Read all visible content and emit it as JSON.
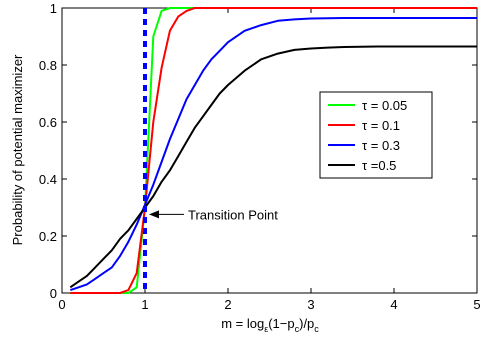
{
  "chart_data": {
    "type": "line",
    "xlabel": "m = log",
    "xlabel_sub1": "ε",
    "xlabel_mid": "(1−p",
    "xlabel_sub2": "c",
    "xlabel_mid2": ")/p",
    "xlabel_sub3": "c",
    "ylabel": "Probability of potential maximizer",
    "xlim": [
      0,
      5
    ],
    "ylim": [
      0,
      1
    ],
    "xticks": [
      0,
      1,
      2,
      3,
      4,
      5
    ],
    "xtick_labels": [
      "0",
      "1",
      "2",
      "3",
      "4",
      "5"
    ],
    "yticks": [
      0,
      0.2,
      0.4,
      0.6,
      0.8,
      1
    ],
    "ytick_labels": [
      "0",
      "0.2",
      "0.4",
      "0.6",
      "0.8",
      "1"
    ],
    "grid": false,
    "legend_position": "right",
    "vertical_line": {
      "x": 1,
      "color": "#0000ff",
      "style": "dashed"
    },
    "annotation": {
      "text": "Transition Point",
      "x": 1,
      "y": 0.29
    },
    "x": [
      0.1,
      0.2,
      0.3,
      0.4,
      0.5,
      0.6,
      0.7,
      0.8,
      0.9,
      1.0,
      1.1,
      1.2,
      1.3,
      1.4,
      1.5,
      1.6,
      1.7,
      1.8,
      1.9,
      2.0,
      2.2,
      2.4,
      2.6,
      2.8,
      3.0,
      3.2,
      3.4,
      3.6,
      3.8,
      4.0,
      4.2,
      4.4,
      4.6,
      4.8,
      5.0
    ],
    "series": [
      {
        "name": "τ = 0.05",
        "color": "#00ff00",
        "values": [
          0.0,
          0.0,
          0.0,
          0.0,
          0.0,
          0.0,
          0.0,
          0.0,
          0.02,
          0.3,
          0.9,
          0.99,
          1.0,
          1.0,
          1.0,
          1.0,
          1.0,
          1.0,
          1.0,
          1.0,
          1.0,
          1.0,
          1.0,
          1.0,
          1.0,
          1.0,
          1.0,
          1.0,
          1.0,
          1.0,
          1.0,
          1.0,
          1.0,
          1.0,
          1.0
        ]
      },
      {
        "name": "τ = 0.1",
        "color": "#ff0000",
        "values": [
          0.0,
          0.0,
          0.0,
          0.0,
          0.0,
          0.0,
          0.0,
          0.01,
          0.07,
          0.3,
          0.6,
          0.79,
          0.92,
          0.97,
          0.99,
          1.0,
          1.0,
          1.0,
          1.0,
          1.0,
          1.0,
          1.0,
          1.0,
          1.0,
          1.0,
          1.0,
          1.0,
          1.0,
          1.0,
          1.0,
          1.0,
          1.0,
          1.0,
          1.0,
          1.0
        ]
      },
      {
        "name": "τ = 0.3",
        "color": "#0000ff",
        "values": [
          0.01,
          0.02,
          0.03,
          0.05,
          0.07,
          0.09,
          0.13,
          0.18,
          0.24,
          0.31,
          0.38,
          0.46,
          0.54,
          0.61,
          0.68,
          0.73,
          0.78,
          0.82,
          0.85,
          0.88,
          0.92,
          0.94,
          0.955,
          0.96,
          0.963,
          0.964,
          0.965,
          0.965,
          0.965,
          0.965,
          0.965,
          0.965,
          0.965,
          0.965,
          0.965
        ]
      },
      {
        "name": "τ =0.5",
        "color": "#000000",
        "values": [
          0.02,
          0.04,
          0.06,
          0.09,
          0.12,
          0.15,
          0.19,
          0.22,
          0.26,
          0.3,
          0.34,
          0.39,
          0.43,
          0.48,
          0.53,
          0.58,
          0.62,
          0.66,
          0.7,
          0.73,
          0.78,
          0.82,
          0.84,
          0.853,
          0.858,
          0.861,
          0.863,
          0.864,
          0.865,
          0.865,
          0.865,
          0.865,
          0.865,
          0.865,
          0.865
        ]
      }
    ]
  }
}
